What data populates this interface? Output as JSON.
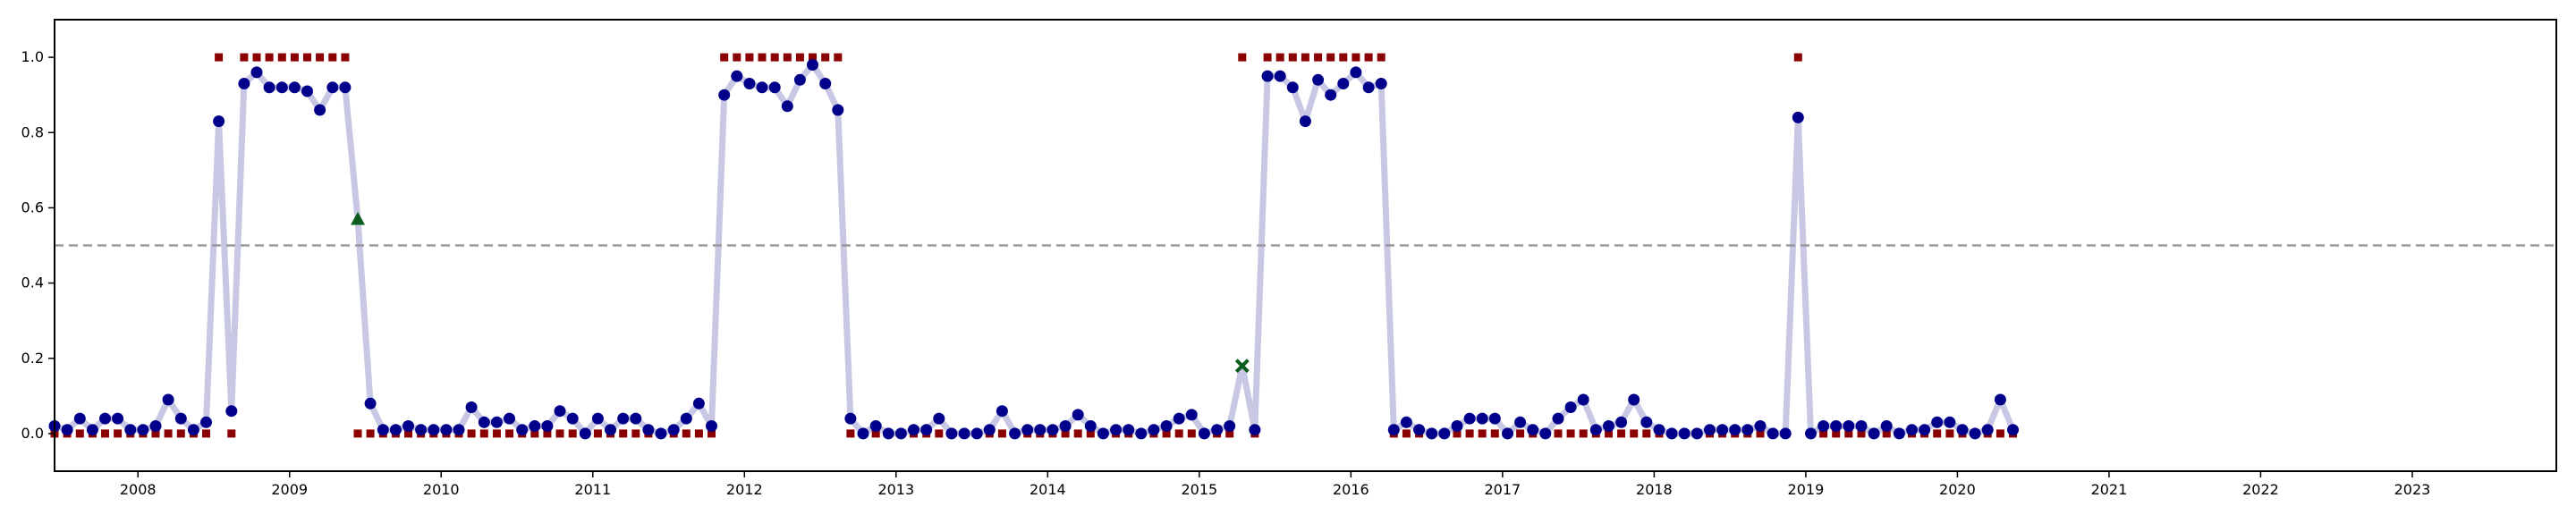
{
  "chart_data": {
    "type": "line",
    "title": "",
    "xlabel": "",
    "ylabel": "",
    "xlim": [
      2007.45,
      2023.95
    ],
    "ylim": [
      -0.1,
      1.1
    ],
    "grid": false,
    "legend": "none",
    "x_ticks": [
      {
        "value": 2008,
        "label": "2008"
      },
      {
        "value": 2009,
        "label": "2009"
      },
      {
        "value": 2010,
        "label": "2010"
      },
      {
        "value": 2011,
        "label": "2011"
      },
      {
        "value": 2012,
        "label": "2012"
      },
      {
        "value": 2013,
        "label": "2013"
      },
      {
        "value": 2014,
        "label": "2014"
      },
      {
        "value": 2015,
        "label": "2015"
      },
      {
        "value": 2016,
        "label": "2016"
      },
      {
        "value": 2017,
        "label": "2017"
      },
      {
        "value": 2018,
        "label": "2018"
      },
      {
        "value": 2019,
        "label": "2019"
      },
      {
        "value": 2020,
        "label": "2020"
      },
      {
        "value": 2021,
        "label": "2021"
      },
      {
        "value": 2022,
        "label": "2022"
      },
      {
        "value": 2023,
        "label": "2023"
      }
    ],
    "y_ticks": [
      {
        "value": 0.0,
        "label": "0.0"
      },
      {
        "value": 0.2,
        "label": "0.2"
      },
      {
        "value": 0.4,
        "label": "0.4"
      },
      {
        "value": 0.6,
        "label": "0.6"
      },
      {
        "value": 0.8,
        "label": "0.8"
      },
      {
        "value": 1.0,
        "label": "1.0"
      }
    ],
    "threshold": {
      "value": 0.5,
      "style": "dashed",
      "color": "#999999"
    },
    "colors": {
      "line": "#c8c8e4",
      "points": "#00008b",
      "labels": "#8b0000",
      "triangle": "#0b5d1e",
      "cross": "#0b5d1e"
    },
    "start_year": 2007.45,
    "step_years": 0.08333,
    "series": [
      {
        "role": "probability",
        "marker": "circle",
        "values": [
          0.02,
          0.01,
          0.04,
          0.01,
          0.04,
          0.04,
          0.01,
          0.01,
          0.02,
          0.09,
          0.04,
          0.01,
          0.03,
          0.83,
          0.06,
          0.93,
          0.96,
          0.92,
          0.92,
          0.92,
          0.91,
          0.86,
          0.92,
          0.92,
          0.57,
          0.08,
          0.01,
          0.01,
          0.02,
          0.01,
          0.01,
          0.01,
          0.01,
          0.07,
          0.03,
          0.03,
          0.04,
          0.01,
          0.02,
          0.02,
          0.06,
          0.04,
          0.0,
          0.04,
          0.01,
          0.04,
          0.04,
          0.01,
          0.0,
          0.01,
          0.04,
          0.08,
          0.02,
          0.9,
          0.95,
          0.93,
          0.92,
          0.92,
          0.87,
          0.94,
          0.98,
          0.93,
          0.86,
          0.04,
          0.0,
          0.02,
          0.0,
          0.0,
          0.01,
          0.01,
          0.04,
          0.0,
          0.0,
          0.0,
          0.01,
          0.06,
          0.0,
          0.01,
          0.01,
          0.01,
          0.02,
          0.05,
          0.02,
          0.0,
          0.01,
          0.01,
          0.0,
          0.01,
          0.02,
          0.04,
          0.05,
          0.0,
          0.01,
          0.02,
          0.18,
          0.01,
          0.95,
          0.95,
          0.92,
          0.83,
          0.94,
          0.9,
          0.93,
          0.96,
          0.92,
          0.93,
          0.01,
          0.03,
          0.01,
          0.0,
          0.0,
          0.02,
          0.04,
          0.04,
          0.04,
          0.0,
          0.03,
          0.01,
          0.0,
          0.04,
          0.07,
          0.09,
          0.01,
          0.02,
          0.03,
          0.09,
          0.03,
          0.01,
          0.0,
          0.0,
          0.0,
          0.01,
          0.01,
          0.01,
          0.01,
          0.02,
          0.0,
          0.0,
          0.84,
          0.0,
          0.02,
          0.02,
          0.02,
          0.02,
          0.0,
          0.02,
          0.0,
          0.01,
          0.01,
          0.03,
          0.03,
          0.01,
          0.0,
          0.01,
          0.09,
          0.01
        ]
      },
      {
        "role": "labels",
        "marker": "square",
        "values": [
          0,
          0,
          0,
          0,
          0,
          0,
          0,
          0,
          0,
          0,
          0,
          0,
          0,
          1,
          0,
          1,
          1,
          1,
          1,
          1,
          1,
          1,
          1,
          1,
          0,
          0,
          0,
          0,
          0,
          0,
          0,
          0,
          0,
          0,
          0,
          0,
          0,
          0,
          0,
          0,
          0,
          0,
          0,
          0,
          0,
          0,
          0,
          0,
          0,
          0,
          0,
          0,
          0,
          1,
          1,
          1,
          1,
          1,
          1,
          1,
          1,
          1,
          1,
          0,
          0,
          0,
          0,
          0,
          0,
          0,
          0,
          0,
          0,
          0,
          0,
          0,
          0,
          0,
          0,
          0,
          0,
          0,
          0,
          0,
          0,
          0,
          0,
          0,
          0,
          0,
          0,
          0,
          0,
          0,
          1,
          0,
          1,
          1,
          1,
          1,
          1,
          1,
          1,
          1,
          1,
          1,
          0,
          0,
          0,
          0,
          0,
          0,
          0,
          0,
          0,
          0,
          0,
          0,
          0,
          0,
          0,
          0,
          0,
          0,
          0,
          0,
          0,
          0,
          0,
          0,
          0,
          0,
          0,
          0,
          0,
          0,
          0,
          0,
          1,
          0,
          0,
          0,
          0,
          0,
          0,
          0,
          0,
          0,
          0,
          0,
          0,
          0,
          0,
          0,
          0,
          0
        ]
      }
    ],
    "highlight_points": [
      {
        "marker": "triangle",
        "index": 24,
        "y": 0.57
      },
      {
        "marker": "cross",
        "index": 94,
        "y": 0.18
      }
    ]
  }
}
